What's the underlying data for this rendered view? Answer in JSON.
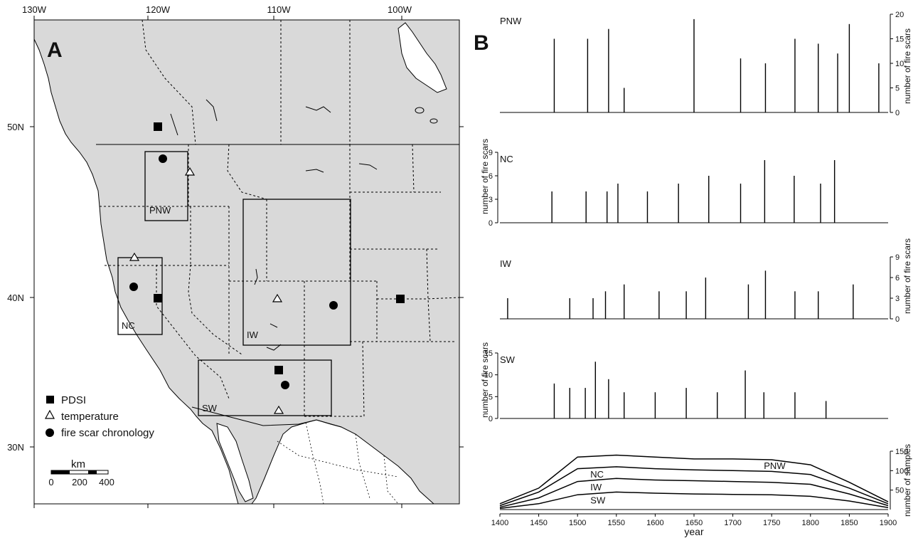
{
  "panel_a": {
    "letter": "A",
    "lon_ticks": [
      "130W",
      "120W",
      "110W",
      "100W"
    ],
    "lat_ticks": [
      "50N",
      "40N",
      "30N"
    ],
    "region_labels": [
      "PNW",
      "NC",
      "IW",
      "SW"
    ],
    "legend": [
      "PDSI",
      "temperature",
      "fire scar chronology"
    ],
    "scale_title": "km",
    "scale_ticks": [
      "0",
      "200",
      "400"
    ]
  },
  "panel_b": {
    "letter": "B",
    "xlabel": "year",
    "x_ticks": [
      "1400",
      "1450",
      "1500",
      "1550",
      "1600",
      "1650",
      "1700",
      "1750",
      "1800",
      "1850",
      "1900"
    ],
    "fire_scar_ylabel": "number of fire scars",
    "samples_ylabel": "number of samples",
    "samples_curve_labels": [
      "PNW",
      "NC",
      "IW",
      "SW"
    ]
  },
  "chart_data": [
    {
      "type": "bar",
      "panel": "PNW",
      "title": "PNW",
      "x": [
        1470,
        1513,
        1540,
        1560,
        1650,
        1710,
        1742,
        1780,
        1810,
        1835,
        1850,
        1888
      ],
      "values": [
        15,
        15,
        17,
        5,
        19,
        11,
        10,
        15,
        14,
        12,
        18,
        10
      ],
      "ylabel": "number of fire scars",
      "y_ticks": [
        0,
        5,
        10,
        15,
        20
      ],
      "ylim": [
        0,
        20
      ],
      "xlim": [
        1400,
        1900
      ]
    },
    {
      "type": "bar",
      "panel": "NC",
      "title": "NC",
      "x": [
        1467,
        1511,
        1538,
        1552,
        1590,
        1630,
        1669,
        1710,
        1741,
        1779,
        1813,
        1831
      ],
      "values": [
        4,
        4,
        4,
        5,
        4,
        5,
        6,
        5,
        8,
        6,
        5,
        8
      ],
      "ylabel": "number of fire scars",
      "y_ticks": [
        0,
        3,
        6,
        9
      ],
      "ylim": [
        0,
        9
      ],
      "xlim": [
        1400,
        1900
      ]
    },
    {
      "type": "bar",
      "panel": "IW",
      "title": "IW",
      "x": [
        1410,
        1490,
        1520,
        1536,
        1560,
        1605,
        1640,
        1665,
        1720,
        1742,
        1780,
        1810,
        1855
      ],
      "values": [
        3,
        3,
        3,
        4,
        5,
        4,
        4,
        6,
        5,
        7,
        4,
        4,
        5
      ],
      "ylabel": "number of fire scars",
      "y_ticks": [
        0,
        3,
        6,
        9
      ],
      "ylim": [
        0,
        9
      ],
      "xlim": [
        1400,
        1900
      ]
    },
    {
      "type": "bar",
      "panel": "SW",
      "title": "SW",
      "x": [
        1470,
        1490,
        1510,
        1523,
        1540,
        1560,
        1600,
        1640,
        1680,
        1716,
        1740,
        1780,
        1820
      ],
      "values": [
        8,
        7,
        7,
        13,
        9,
        6,
        6,
        7,
        6,
        11,
        6,
        6,
        4
      ],
      "ylabel": "number of fire scars",
      "y_ticks": [
        0,
        5,
        10,
        15
      ],
      "ylim": [
        0,
        15
      ],
      "xlim": [
        1400,
        1900
      ]
    },
    {
      "type": "line",
      "panel": "samples",
      "ylabel": "number of samples",
      "y_ticks": [
        50,
        100,
        150
      ],
      "ylim": [
        0,
        150
      ],
      "xlim": [
        1400,
        1900
      ],
      "x": [
        1400,
        1450,
        1500,
        1550,
        1600,
        1650,
        1700,
        1750,
        1800,
        1850,
        1900
      ],
      "series": [
        {
          "name": "PNW",
          "values": [
            15,
            55,
            135,
            140,
            135,
            130,
            130,
            128,
            115,
            70,
            20
          ]
        },
        {
          "name": "NC",
          "values": [
            10,
            45,
            105,
            110,
            105,
            102,
            100,
            98,
            90,
            55,
            15
          ]
        },
        {
          "name": "IW",
          "values": [
            6,
            30,
            72,
            80,
            76,
            74,
            72,
            70,
            65,
            40,
            10
          ]
        },
        {
          "name": "SW",
          "values": [
            3,
            15,
            38,
            45,
            42,
            40,
            39,
            38,
            34,
            22,
            5
          ]
        }
      ]
    }
  ]
}
